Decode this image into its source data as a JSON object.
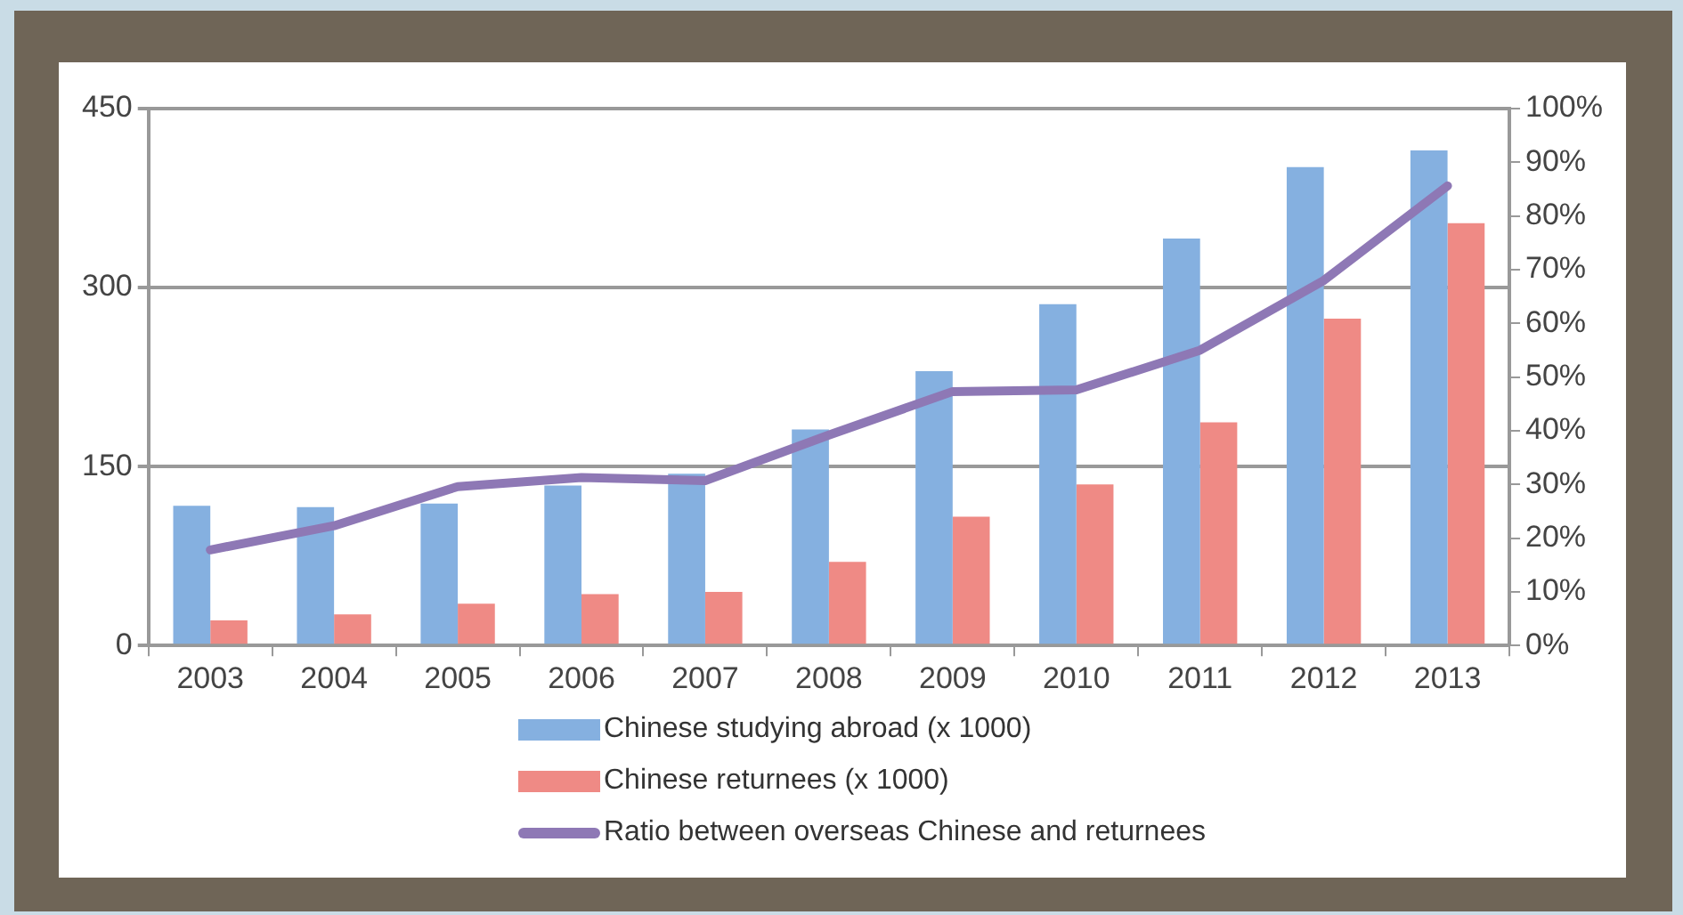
{
  "chart_data": {
    "type": "bar",
    "categories": [
      "2003",
      "2004",
      "2005",
      "2006",
      "2007",
      "2008",
      "2009",
      "2010",
      "2011",
      "2012",
      "2013"
    ],
    "series": [
      {
        "name": "Chinese studying abroad (x 1000)",
        "color": "#85b0e0",
        "values": [
          117,
          116,
          119,
          134,
          144,
          181,
          230,
          286,
          341,
          401,
          415
        ]
      },
      {
        "name": "Chinese returnees (x 1000)",
        "color": "#ef8a85",
        "values": [
          21,
          26,
          35,
          43,
          45,
          70,
          108,
          135,
          187,
          274,
          354
        ]
      },
      {
        "name": "Ratio between overseas Chinese and returnees",
        "type": "line",
        "axis": "y2",
        "color": "#8e78b5",
        "values": [
          17.8,
          22.3,
          29.6,
          31.3,
          30.7,
          39.2,
          47.3,
          47.6,
          55,
          68,
          85.6
        ]
      }
    ],
    "ylim": [
      0,
      450
    ],
    "yticks": [
      0,
      150,
      300,
      450
    ],
    "y2lim": [
      0,
      100
    ],
    "y2ticks": [
      {
        "value": 0,
        "label": "0%"
      },
      {
        "value": 10,
        "label": "10%"
      },
      {
        "value": 20,
        "label": "20%"
      },
      {
        "value": 30,
        "label": "30%"
      },
      {
        "value": 40,
        "label": "40%"
      },
      {
        "value": 50,
        "label": "50%"
      },
      {
        "value": 60,
        "label": "60%"
      },
      {
        "value": 70,
        "label": "70%"
      },
      {
        "value": 80,
        "label": "80%"
      },
      {
        "value": 90,
        "label": "90%"
      },
      {
        "value": 100,
        "label": "100%"
      }
    ],
    "grid": "y",
    "legend": "bottom",
    "line_style": "solid"
  }
}
